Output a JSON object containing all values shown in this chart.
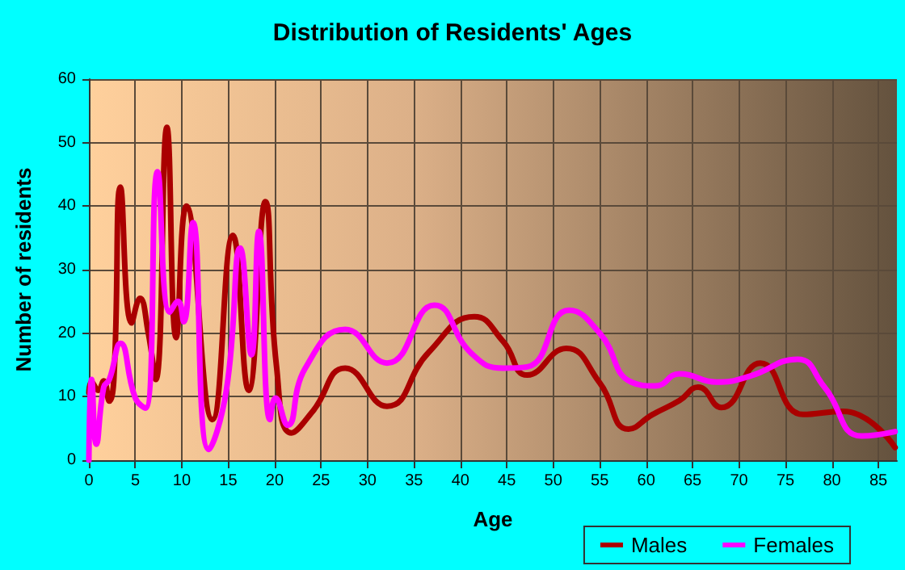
{
  "chart_data": {
    "type": "line",
    "title": "Distribution of Residents' Ages",
    "xlabel": "Age",
    "ylabel": "Number of residents",
    "xlim": [
      0,
      87
    ],
    "xticks": [
      0,
      5,
      10,
      15,
      20,
      25,
      30,
      35,
      40,
      45,
      50,
      55,
      60,
      65,
      70,
      75,
      80,
      85
    ],
    "ylim": [
      0,
      60
    ],
    "yticks": [
      0,
      10,
      20,
      30,
      40,
      50,
      60
    ],
    "grid": true,
    "legend": "bottom right",
    "marker": "none",
    "line_style": "solid",
    "series": [
      {
        "name": "Males",
        "color": "#aa0000",
        "x": [
          0,
          0.3,
          1,
          1.6,
          2.2,
          2.7,
          3.4,
          4.6,
          5.5,
          6.4,
          7.2,
          8.4,
          9.4,
          10.5,
          13.3,
          15.5,
          17.2,
          19,
          20.2,
          21.8,
          24.1,
          27.6,
          32.1,
          36.6,
          41.5,
          44.6,
          47.2,
          51.4,
          55,
          58.1,
          60.7,
          63.6,
          65.6,
          68.1,
          72.3,
          76.9,
          81.2,
          86.8
        ],
        "values": [
          10.6,
          12.3,
          11,
          12.5,
          9.3,
          13,
          43,
          21.6,
          25.5,
          20,
          12.7,
          52.4,
          19.3,
          40,
          6.4,
          35.4,
          11,
          40.7,
          14.8,
          4.3,
          7.7,
          14.5,
          8.5,
          17,
          22.6,
          18.7,
          13.4,
          17.6,
          12.2,
          4.9,
          7.2,
          9.4,
          11.5,
          8.3,
          15.3,
          7.2,
          7.7,
          2
        ]
      },
      {
        "name": "Females",
        "color": "#ff00ff",
        "x": [
          0,
          0.3,
          0.8,
          1.6,
          2.2,
          3.4,
          5,
          6.1,
          7.4,
          8.7,
          9.6,
          10.2,
          11.2,
          12.9,
          14.8,
          16.3,
          17.5,
          18.3,
          19.5,
          20.1,
          21.4,
          23.3,
          27.6,
          32.1,
          37.2,
          41.2,
          44.6,
          47.2,
          51.7,
          55,
          58.4,
          61,
          63.6,
          67.6,
          71.1,
          76.3,
          79.2,
          83.2,
          86.8
        ],
        "values": [
          0,
          12.7,
          2.5,
          11.5,
          12.7,
          18.4,
          9.8,
          8.2,
          45.4,
          23.3,
          25,
          21.8,
          37.4,
          1.7,
          11,
          33.4,
          16.6,
          36,
          6.4,
          9.8,
          5.5,
          14.5,
          20.6,
          15.3,
          24.4,
          16.8,
          14.5,
          14.7,
          23.6,
          20,
          12.3,
          11.7,
          13.6,
          12.3,
          13.2,
          15.9,
          11.5,
          3.8,
          4.5
        ]
      }
    ]
  }
}
